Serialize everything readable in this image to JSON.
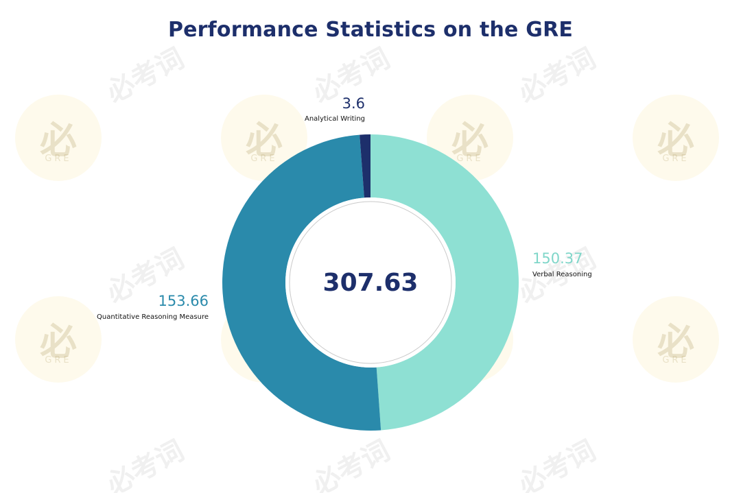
{
  "chart_data": {
    "type": "pie",
    "title": "Performance Statistics on the GRE",
    "center_text": "307.63",
    "slices": [
      {
        "label": "Verbal Reasoning",
        "value_text": "150.37",
        "value": 150.37,
        "color": "#8ee0d3"
      },
      {
        "label": "Quantitative Reasoning Measure",
        "value_text": "153.66",
        "value": 153.66,
        "color": "#2a8aab"
      },
      {
        "label": "Analytical Writing",
        "value_text": "3.6",
        "value": 3.6,
        "color": "#1d2f6b"
      }
    ],
    "label_colors": [
      "#7fd6c9",
      "#2a8aab",
      "#1d2f6b"
    ],
    "legend": "none"
  },
  "watermark": {
    "text": "必考词",
    "badge_char": "必",
    "badge_sub": "GRE"
  }
}
